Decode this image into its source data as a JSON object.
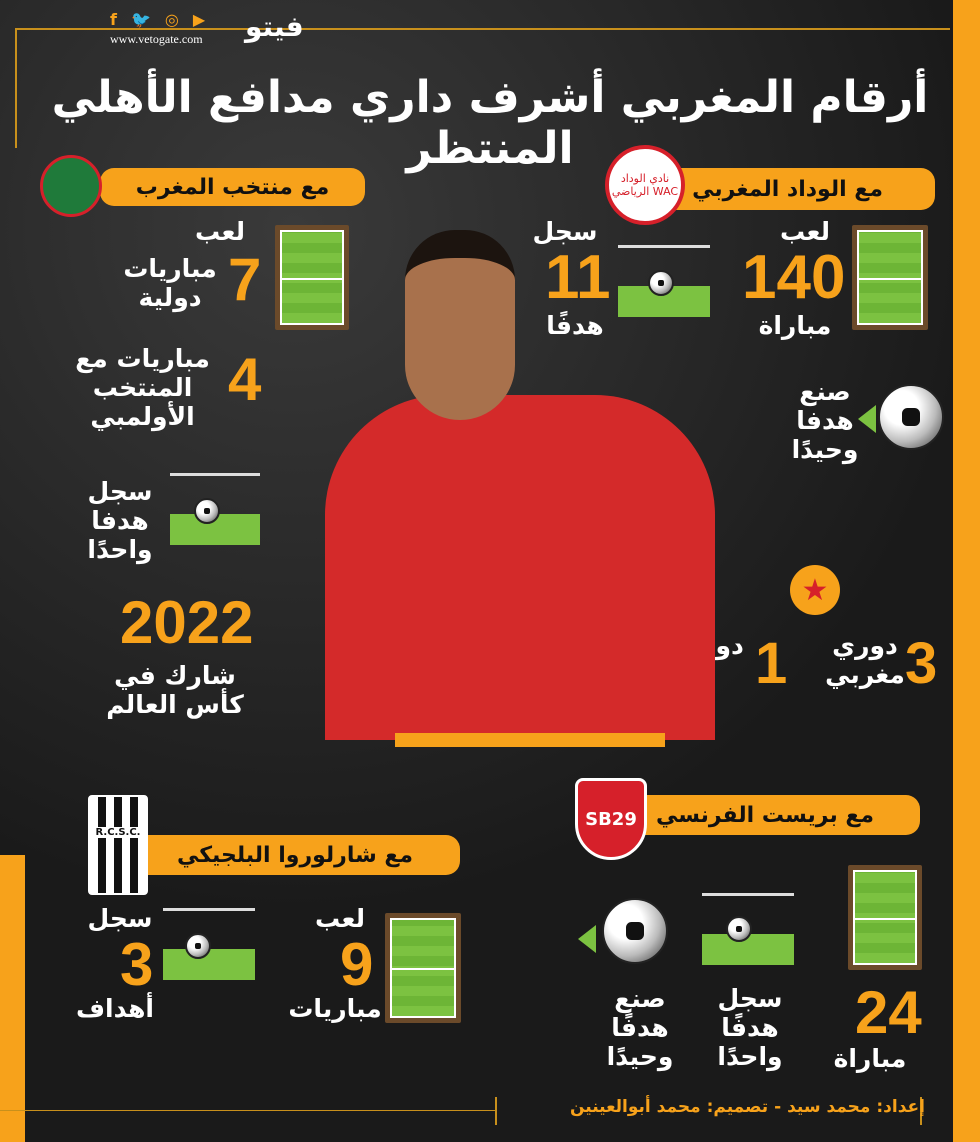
{
  "header": {
    "website": "www.vetogate.com",
    "logo": "فيتو",
    "social_icons": [
      "facebook-icon",
      "twitter-icon",
      "instagram-icon",
      "youtube-icon"
    ],
    "title": "أرقام المغربي أشرف داري مدافع الأهلي المنتظر"
  },
  "colors": {
    "accent": "#f7a21b",
    "background": "#1b1b1b",
    "pitch": "#7cc241"
  },
  "wydad": {
    "header": "مع الوداد المغربي",
    "crest_text": "نادي الوداد الرياضي WAC",
    "played_label": "لعب",
    "played_value": "140",
    "played_unit": "مباراة",
    "scored_label": "سجل",
    "scored_value": "11",
    "scored_unit": "هدفًا",
    "assist": "صنع هدفا وحيدًا",
    "league_value": "3",
    "league_label": "دوري مغربي",
    "cl_value": "1",
    "cl_label": "دوري أبطال إفريقيا"
  },
  "morocco": {
    "header": "مع منتخب المغرب",
    "played_label": "لعب",
    "played_value": "7",
    "played_unit": "مباريات دولية",
    "olympic_value": "4",
    "olympic_label": "مباريات مع المنتخب الأولمبي",
    "scored": "سجل هدفا واحدًا",
    "wc_value": "2022",
    "wc_label": "شارك في كأس العالم"
  },
  "brest": {
    "header": "مع بريست الفرنسي",
    "crest_text": "SB29",
    "played_value": "24",
    "played_unit": "مباراة",
    "scored": "سجل هدفًا واحدًا",
    "assist": "صنع هدفًا وحيدًا"
  },
  "charleroi": {
    "header": "مع شارلوروا البلجيكي",
    "crest_text": "R.C.S.C.",
    "played_label": "لعب",
    "played_value": "9",
    "played_unit": "مباريات",
    "scored_label": "سجل",
    "scored_value": "3",
    "scored_unit": "أهداف"
  },
  "credits": "إعداد: محمد سيد  -  تصميم: محمد أبوالعينين"
}
